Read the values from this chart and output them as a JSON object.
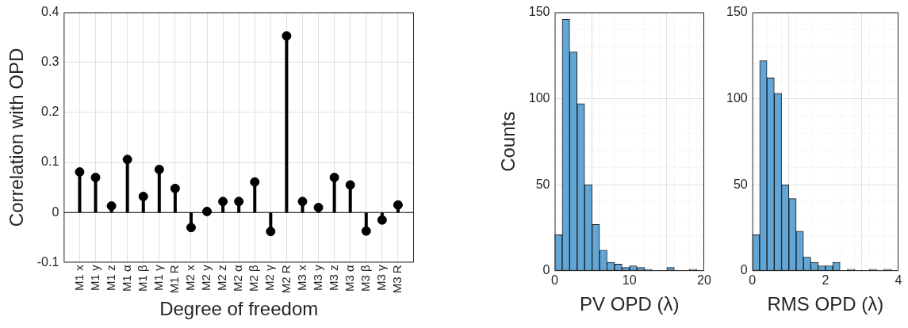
{
  "chart_data": [
    {
      "type": "lollipop",
      "xlabel": "Degree of freedom",
      "ylabel": "Correlation with OPD",
      "categories": [
        "M1 x",
        "M1 y",
        "M1 z",
        "M1 α",
        "M1 β",
        "M1 γ",
        "M1 R",
        "M2 x",
        "M2 y",
        "M2 z",
        "M2 α",
        "M2 β",
        "M2 γ",
        "M2 R",
        "M3 x",
        "M3 y",
        "M3 z",
        "M3 α",
        "M3 β",
        "M3 γ",
        "M3 R"
      ],
      "values": [
        0.081,
        0.07,
        0.013,
        0.106,
        0.032,
        0.086,
        0.048,
        -0.03,
        0.002,
        0.022,
        0.022,
        0.061,
        -0.038,
        0.353,
        0.022,
        0.01,
        0.07,
        0.055,
        -0.037,
        -0.015,
        0.015
      ],
      "color": "#000000",
      "marker": "circle",
      "ylim": [
        -0.1,
        0.4
      ],
      "yticks": [
        -0.1,
        0,
        0.1,
        0.2,
        0.3,
        0.4
      ],
      "grid": true
    },
    {
      "type": "histogram",
      "xlabel": "PV OPD (λ)",
      "ylabel": "Counts",
      "color": "#62a6d6",
      "bins": [
        0,
        1,
        2,
        3,
        4,
        5,
        6,
        7,
        8,
        9,
        10,
        11,
        12,
        13,
        14,
        15,
        16,
        17,
        18,
        19,
        20
      ],
      "values": [
        21,
        146,
        127,
        97,
        50,
        27,
        12,
        5,
        4,
        2,
        3,
        2,
        1,
        0,
        0,
        2,
        0,
        0,
        1,
        0
      ],
      "xlim": [
        0,
        20
      ],
      "xticks": [
        0,
        10,
        20
      ],
      "ylim": [
        0,
        150
      ],
      "yticks": [
        0,
        50,
        100,
        150
      ],
      "grid": true
    },
    {
      "type": "histogram",
      "xlabel": "RMS OPD (λ)",
      "color": "#62a6d6",
      "bins": [
        0,
        0.2,
        0.4,
        0.6,
        0.8,
        1,
        1.2,
        1.4,
        1.6,
        1.8,
        2,
        2.2,
        2.4,
        2.6,
        2.8,
        3,
        3.2,
        3.4,
        3.6,
        3.8,
        4
      ],
      "values": [
        21,
        122,
        112,
        103,
        50,
        42,
        23,
        8,
        5,
        3,
        3,
        5,
        0,
        1,
        0,
        0,
        1,
        0,
        1,
        0
      ],
      "xlim": [
        0,
        4
      ],
      "xticks": [
        0,
        2,
        4
      ],
      "ylim": [
        0,
        150
      ],
      "yticks": [
        0,
        50,
        100,
        150
      ],
      "grid": true
    }
  ]
}
